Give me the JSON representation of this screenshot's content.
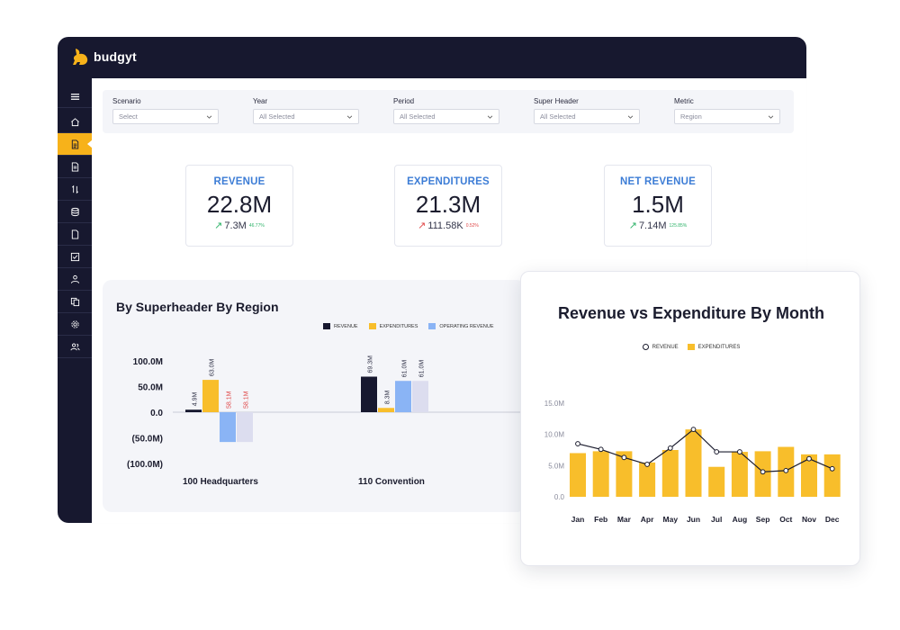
{
  "app": {
    "logo_text": "budgyt"
  },
  "sidebar": {
    "items": [
      {
        "icon": "menu-icon"
      },
      {
        "icon": "home-icon"
      },
      {
        "icon": "report-icon",
        "active": true
      },
      {
        "icon": "document-icon"
      },
      {
        "icon": "transfer-icon"
      },
      {
        "icon": "database-icon"
      },
      {
        "icon": "file-icon"
      },
      {
        "icon": "checklist-icon"
      },
      {
        "icon": "user-dollar-icon"
      },
      {
        "icon": "copy-icon"
      },
      {
        "icon": "settings-icon"
      },
      {
        "icon": "users-icon"
      }
    ]
  },
  "filters": [
    {
      "label": "Scenario",
      "value": "Select"
    },
    {
      "label": "Year",
      "value": "All Selected"
    },
    {
      "label": "Period",
      "value": "All Selected"
    },
    {
      "label": "Super Header",
      "value": "All Selected"
    },
    {
      "label": "Metric",
      "value": "Region"
    }
  ],
  "kpis": [
    {
      "title": "REVENUE",
      "value": "22.8M",
      "sub": "7.3M",
      "pct": "46.77%",
      "trend": "up"
    },
    {
      "title": "EXPENDITURES",
      "value": "21.3M",
      "sub": "111.58K",
      "pct": "0.52%",
      "trend": "up-bad"
    },
    {
      "title": "NET REVENUE",
      "value": "1.5M",
      "sub": "7.14M",
      "pct": "125.85%",
      "trend": "up"
    }
  ],
  "chart_left": {
    "title": "By Superheader By Region",
    "legend": [
      "REVENUE",
      "EXPENDITURES",
      "OPERATING REVENUE"
    ]
  },
  "chart_right": {
    "title": "Revenue vs Expenditure By Month",
    "legend": [
      "REVENUE",
      "EXPENDITURES"
    ]
  },
  "colors": {
    "navy": "#17182f",
    "yellow": "#f8be2b",
    "lightblue": "#8ab4f5",
    "lavender": "#dcddef",
    "accent_blue": "#3d7dd6"
  },
  "chart_data": [
    {
      "type": "bar",
      "categories": [
        "100 Headquarters",
        "110 Convention"
      ],
      "series": [
        {
          "name": "REVENUE",
          "values": [
            4.9,
            69.3
          ],
          "labels": [
            "4.9M",
            "69.3M"
          ]
        },
        {
          "name": "EXPENDITURES",
          "values": [
            63.0,
            8.3
          ],
          "labels": [
            "63.0M",
            "8.3M"
          ]
        },
        {
          "name": "OPERATING REVENUE",
          "values": [
            -58.1,
            61.0
          ],
          "labels": [
            "58.1M",
            "61.0M"
          ]
        },
        {
          "name": "",
          "values": [
            -58.1,
            61.0
          ],
          "labels": [
            "58.1M",
            "61.0M"
          ]
        }
      ],
      "yticks": [
        "100.0M",
        "50.0M",
        "0.0",
        "(50.0M)",
        "(100.0M)"
      ],
      "ylim": [
        -100,
        100
      ],
      "unit": "M"
    },
    {
      "type": "bar",
      "categories": [
        "Jan",
        "Feb",
        "Mar",
        "Apr",
        "May",
        "Jun",
        "Jul",
        "Aug",
        "Sep",
        "Oct",
        "Nov",
        "Dec"
      ],
      "series": [
        {
          "name": "EXPENDITURES",
          "type": "bar",
          "values": [
            7.0,
            7.3,
            7.3,
            5.5,
            7.5,
            10.8,
            4.8,
            7.2,
            7.3,
            8.0,
            6.8,
            6.8
          ]
        },
        {
          "name": "REVENUE",
          "type": "line",
          "values": [
            8.5,
            7.6,
            6.3,
            5.2,
            7.8,
            10.8,
            7.2,
            7.2,
            4.0,
            4.2,
            6.1,
            4.5
          ]
        }
      ],
      "yticks": [
        "15.0M",
        "10.0M",
        "5.0M",
        "0.0"
      ],
      "ylim": [
        0,
        15
      ],
      "unit": "M"
    }
  ]
}
